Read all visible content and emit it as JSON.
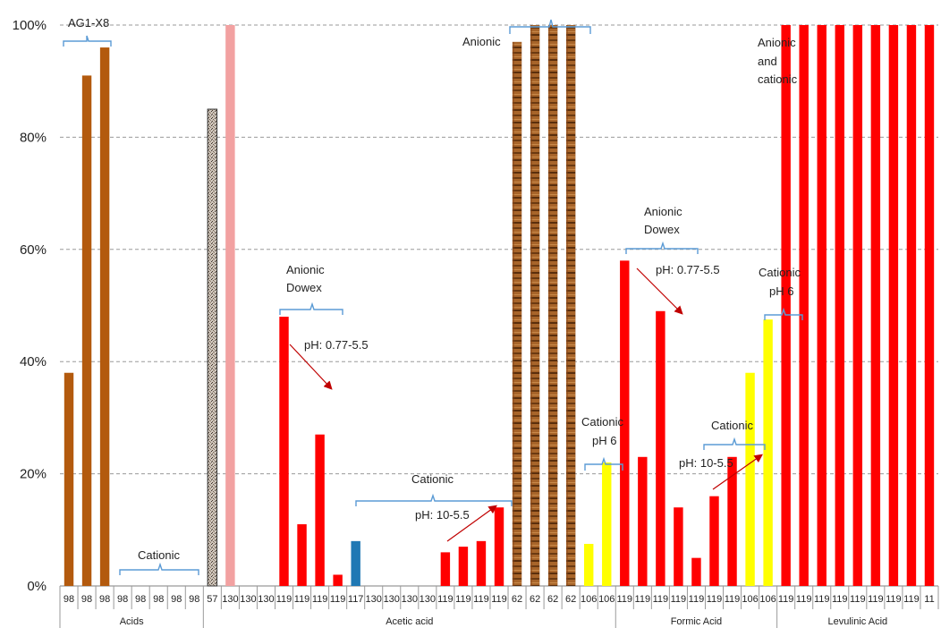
{
  "chart_data": {
    "type": "bar",
    "ylim": [
      0,
      100
    ],
    "grid": true,
    "y_ticks": [
      "0%",
      "20%",
      "40%",
      "60%",
      "80%",
      "100%"
    ],
    "categories": [
      "98",
      "98",
      "98",
      "98",
      "98",
      "98",
      "98",
      "98",
      "57",
      "130",
      "130",
      "130",
      "119",
      "119",
      "119",
      "119",
      "117",
      "130",
      "130",
      "130",
      "130",
      "119",
      "119",
      "119",
      "119",
      "62",
      "62",
      "62",
      "62",
      "106",
      "106",
      "119",
      "119",
      "119",
      "119",
      "119",
      "119",
      "119",
      "106",
      "106",
      "119",
      "119",
      "119",
      "119",
      "119",
      "119",
      "119",
      "119",
      "11"
    ],
    "values": [
      38,
      91,
      96,
      0,
      0,
      0,
      0,
      0,
      85,
      100,
      0,
      0,
      48,
      11,
      27,
      2,
      8,
      0,
      0,
      0,
      0,
      6,
      7,
      8,
      14,
      97,
      100,
      100,
      100,
      7.5,
      22,
      58,
      23,
      49,
      14,
      5,
      16,
      23,
      38,
      47.5,
      100,
      100,
      100,
      100,
      100,
      100,
      100,
      100,
      100
    ],
    "colors": [
      "#b35a0e",
      "#b35a0e",
      "#b35a0e",
      "#b35a0e",
      "#b35a0e",
      "#b35a0e",
      "#b35a0e",
      "#b35a0e",
      "#9a8a7a",
      "#f2a1a1",
      "#ff0000",
      "#ff0000",
      "#ff0000",
      "#ff0000",
      "#ff0000",
      "#ff0000",
      "#1f78b4",
      "#ff0000",
      "#ff0000",
      "#ff0000",
      "#ff0000",
      "#ff0000",
      "#ff0000",
      "#ff0000",
      "#ff0000",
      "#8b4a1c",
      "#8b4a1c",
      "#8b4a1c",
      "#8b4a1c",
      "#ffff00",
      "#ffff00",
      "#ff0000",
      "#ff0000",
      "#ff0000",
      "#ff0000",
      "#ff0000",
      "#ff0000",
      "#ff0000",
      "#ffff00",
      "#ffff00",
      "#ff0000",
      "#ff0000",
      "#ff0000",
      "#ff0000",
      "#ff0000",
      "#ff0000",
      "#ff0000",
      "#ff0000",
      "#ff0000"
    ],
    "groups": [
      {
        "name": "Acids",
        "start": 0,
        "end": 7
      },
      {
        "name": "Acetic acid",
        "start": 8,
        "end": 30
      },
      {
        "name": "Formic Acid",
        "start": 31,
        "end": 39
      },
      {
        "name": "Levulinic Acid",
        "start": 40,
        "end": 48
      }
    ],
    "annotations": {
      "ag1x8": "AG1-X8",
      "cationic_1": "Cationic",
      "anionic_dowex_1_line1": "Anionic",
      "anionic_dowex_1_line2": "Dowex",
      "ph_1": "pH: 0.77-5.5",
      "cationic_2": "Cationic",
      "ph_2": "pH: 10-5.5",
      "anionic_3": "Anionic",
      "cationic_ph6_1_line1": "Cationic",
      "cationic_ph6_1_line2": "pH 6",
      "anionic_dowex_2_line1": "Anionic",
      "anionic_dowex_2_line2": "Dowex",
      "ph_3": "pH: 0.77-5.5",
      "cationic_3": "Cationic",
      "ph_4": "pH: 10-5.5",
      "cationic_ph6_2_line1": "Cationic",
      "cationic_ph6_2_line2": "pH 6",
      "anionic_cationic_line1": "Anionic",
      "anionic_cationic_line2": "and",
      "anionic_cationic_line3": "cationic"
    }
  }
}
